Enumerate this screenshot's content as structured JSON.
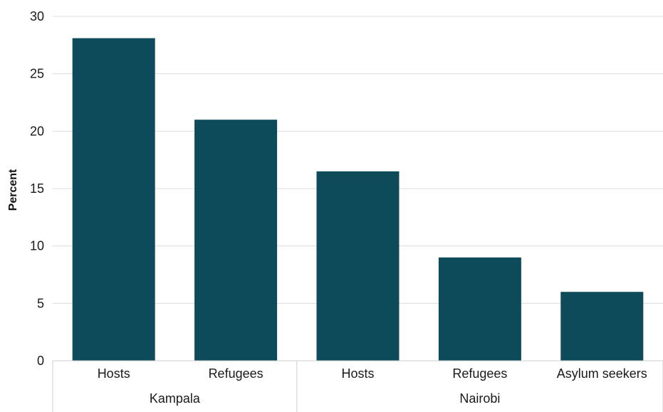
{
  "chart_data": {
    "type": "bar",
    "ylabel": "Percent",
    "xlabel": "",
    "ylim": [
      0,
      30
    ],
    "yticks": [
      0,
      5,
      10,
      15,
      20,
      25,
      30
    ],
    "grid": true,
    "bar_color": "#0e4b5a",
    "groups": [
      {
        "name": "Kampala",
        "categories": [
          "Hosts",
          "Refugees"
        ]
      },
      {
        "name": "Nairobi",
        "categories": [
          "Hosts",
          "Refugees",
          "Asylum seekers"
        ]
      }
    ],
    "bars": [
      {
        "group": "Kampala",
        "category": "Hosts",
        "value": 28.1
      },
      {
        "group": "Kampala",
        "category": "Refugees",
        "value": 21.0
      },
      {
        "group": "Nairobi",
        "category": "Hosts",
        "value": 16.5
      },
      {
        "group": "Nairobi",
        "category": "Refugees",
        "value": 9.0
      },
      {
        "group": "Nairobi",
        "category": "Asylum seekers",
        "value": 6.0
      }
    ]
  }
}
